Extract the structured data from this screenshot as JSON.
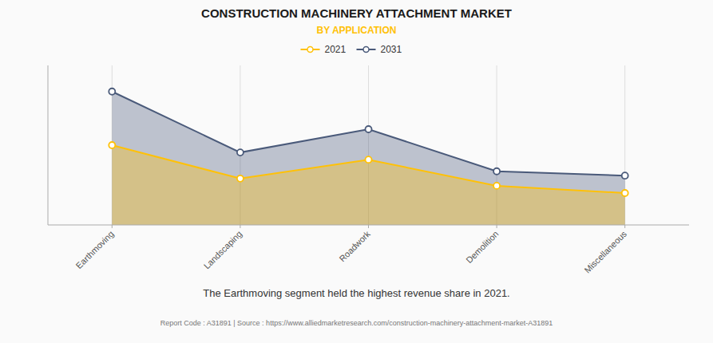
{
  "chart_data": {
    "type": "area",
    "title": "CONSTRUCTION MACHINERY ATTACHMENT MARKET",
    "subtitle": "BY APPLICATION",
    "categories": [
      "Earthmoving",
      "Landscaping",
      "Roadwork",
      "Demolition",
      "Miscellaneous"
    ],
    "series": [
      {
        "name": "2021",
        "color": "#FFC107",
        "values": [
          55,
          32,
          45,
          27,
          22
        ]
      },
      {
        "name": "2031",
        "color": "#4a5a7a",
        "values": [
          92,
          50,
          66,
          37,
          34
        ]
      }
    ],
    "ylim": [
      0,
      110
    ],
    "yticks": [],
    "tick_labels": "x",
    "grid": true,
    "marker": "circle",
    "annotations": [
      "The Earthmoving segment held the highest revenue share in 2021.",
      "Report Code : A31891  |  Source : https://www.alliedmarketresearch.com/construction-machinery-attachment-market-A31891"
    ]
  }
}
